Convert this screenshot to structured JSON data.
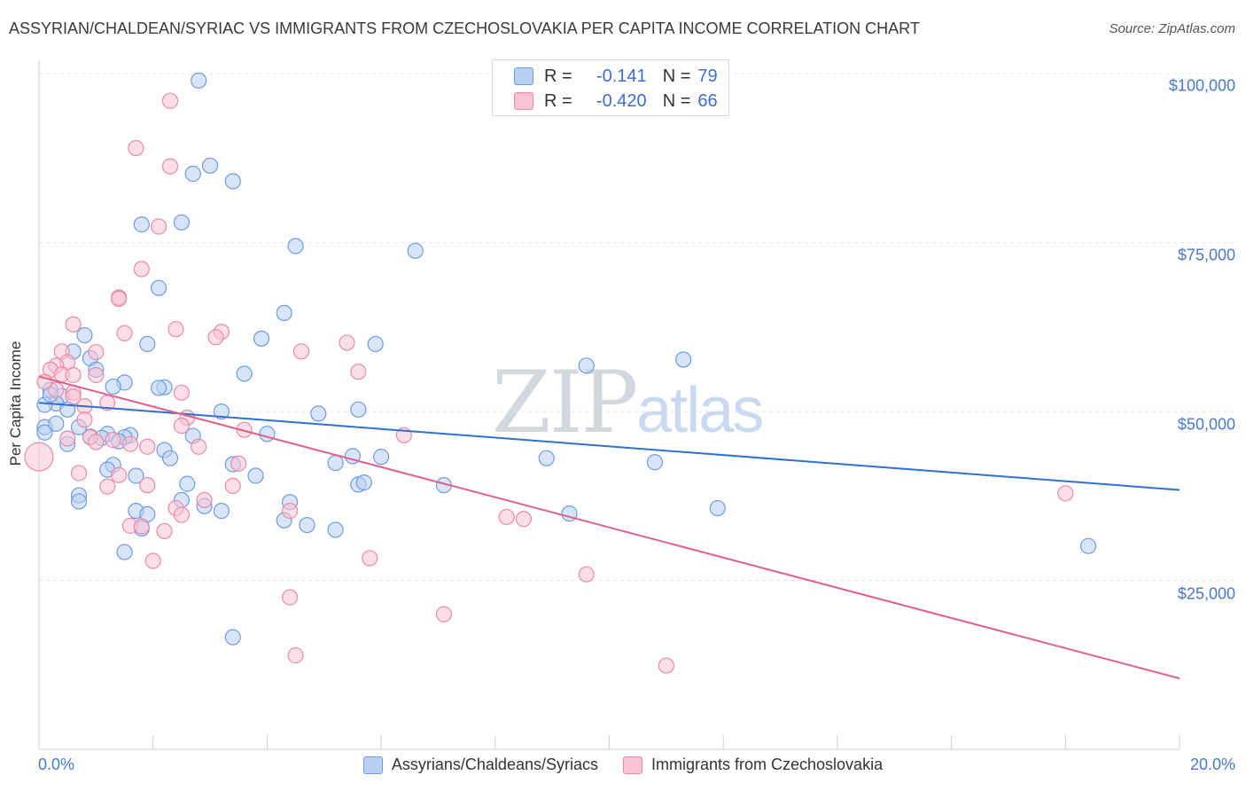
{
  "header": {
    "title": "ASSYRIAN/CHALDEAN/SYRIAC VS IMMIGRANTS FROM CZECHOSLOVAKIA PER CAPITA INCOME CORRELATION CHART",
    "source": "Source: ZipAtlas.com"
  },
  "watermark": {
    "zip": "ZIP",
    "atlas": "atlas"
  },
  "stats": {
    "blue": {
      "r_label": "R =",
      "r_value": "-0.141",
      "n_label": "N =",
      "n_value": "79"
    },
    "pink": {
      "r_label": "R =",
      "r_value": "-0.420",
      "n_label": "N =",
      "n_value": "66"
    }
  },
  "legend": {
    "blue_label": "Assyrians/Chaldeans/Syriacs",
    "pink_label": "Immigrants from Czechoslovakia"
  },
  "colors": {
    "blue_fill": "#b8d0f2",
    "blue_stroke": "#6f9be0",
    "blue_line": "#2f6fd0",
    "pink_fill": "#f9c3d3",
    "pink_stroke": "#e98aa8",
    "pink_line": "#e0608a",
    "grid": "#e2e2e2",
    "tick_text": "#4a78c8"
  },
  "chart_data": {
    "type": "scatter",
    "title": "ASSYRIAN/CHALDEAN/SYRIAC VS IMMIGRANTS FROM CZECHOSLOVAKIA PER CAPITA INCOME CORRELATION CHART",
    "xlabel": "",
    "ylabel": "Per Capita Income",
    "x_unit": "%",
    "xlim": [
      0,
      20
    ],
    "ylim": [
      0,
      102000
    ],
    "x_tick_labels": [
      "0.0%",
      "20.0%"
    ],
    "y_ticks": [
      25000,
      50000,
      75000,
      100000
    ],
    "y_tick_labels": [
      "$25,000",
      "$50,000",
      "$75,000",
      "$100,000"
    ],
    "grid": true,
    "series": [
      {
        "name": "Assyrians/Chaldeans/Syriacs",
        "R": -0.141,
        "N": 79,
        "trend": {
          "x": [
            0,
            20
          ],
          "y": [
            51300,
            38400
          ]
        },
        "points": [
          [
            2.8,
            99000
          ],
          [
            3.0,
            86400
          ],
          [
            2.7,
            85200
          ],
          [
            3.4,
            84100
          ],
          [
            1.8,
            77700
          ],
          [
            2.5,
            78000
          ],
          [
            4.5,
            74500
          ],
          [
            6.6,
            73800
          ],
          [
            2.1,
            68300
          ],
          [
            4.3,
            64600
          ],
          [
            0.8,
            61300
          ],
          [
            3.9,
            60800
          ],
          [
            1.9,
            60000
          ],
          [
            5.9,
            60000
          ],
          [
            0.6,
            58900
          ],
          [
            0.9,
            57900
          ],
          [
            11.3,
            57700
          ],
          [
            9.6,
            56800
          ],
          [
            1.0,
            56200
          ],
          [
            3.6,
            55600
          ],
          [
            1.5,
            54300
          ],
          [
            1.3,
            53700
          ],
          [
            2.2,
            53600
          ],
          [
            2.1,
            53500
          ],
          [
            0.2,
            53200
          ],
          [
            0.4,
            52300
          ],
          [
            0.3,
            51200
          ],
          [
            0.1,
            51000
          ],
          [
            0.5,
            50300
          ],
          [
            3.2,
            50000
          ],
          [
            4.9,
            49700
          ],
          [
            5.6,
            50300
          ],
          [
            0.7,
            47700
          ],
          [
            0.1,
            47700
          ],
          [
            0.1,
            46900
          ],
          [
            1.2,
            46700
          ],
          [
            1.6,
            46500
          ],
          [
            2.7,
            46400
          ],
          [
            4.0,
            46700
          ],
          [
            0.9,
            46300
          ],
          [
            1.1,
            46100
          ],
          [
            1.5,
            46200
          ],
          [
            0.5,
            45200
          ],
          [
            2.2,
            44300
          ],
          [
            2.3,
            43100
          ],
          [
            5.5,
            43400
          ],
          [
            6.0,
            43300
          ],
          [
            8.9,
            43100
          ],
          [
            10.8,
            42500
          ],
          [
            5.2,
            42400
          ],
          [
            3.4,
            42200
          ],
          [
            1.3,
            42100
          ],
          [
            1.2,
            41400
          ],
          [
            3.8,
            40500
          ],
          [
            1.7,
            40500
          ],
          [
            2.6,
            39300
          ],
          [
            5.6,
            39200
          ],
          [
            5.7,
            39500
          ],
          [
            7.1,
            39100
          ],
          [
            0.7,
            37600
          ],
          [
            2.5,
            36900
          ],
          [
            0.7,
            36700
          ],
          [
            4.4,
            36600
          ],
          [
            2.9,
            36000
          ],
          [
            3.2,
            35300
          ],
          [
            1.7,
            35300
          ],
          [
            1.9,
            34800
          ],
          [
            9.3,
            34900
          ],
          [
            11.9,
            35700
          ],
          [
            4.3,
            33900
          ],
          [
            4.7,
            33200
          ],
          [
            5.2,
            32500
          ],
          [
            1.8,
            32700
          ],
          [
            1.5,
            29200
          ],
          [
            18.4,
            30100
          ],
          [
            3.4,
            16600
          ],
          [
            0.2,
            52500
          ],
          [
            0.3,
            48200
          ],
          [
            1.4,
            45600
          ]
        ]
      },
      {
        "name": "Immigrants from Czechoslovakia",
        "R": -0.42,
        "N": 66,
        "trend": {
          "x": [
            0,
            20
          ],
          "y": [
            55200,
            10500
          ]
        },
        "points": [
          [
            2.3,
            96000
          ],
          [
            1.7,
            89000
          ],
          [
            2.3,
            86300
          ],
          [
            2.1,
            77400
          ],
          [
            1.8,
            71100
          ],
          [
            1.4,
            66900
          ],
          [
            1.4,
            66700
          ],
          [
            0.6,
            62900
          ],
          [
            2.4,
            62200
          ],
          [
            3.2,
            61800
          ],
          [
            3.1,
            61000
          ],
          [
            1.5,
            61600
          ],
          [
            5.4,
            60200
          ],
          [
            0.4,
            58900
          ],
          [
            1.0,
            58800
          ],
          [
            4.6,
            58900
          ],
          [
            0.5,
            57300
          ],
          [
            0.3,
            56800
          ],
          [
            0.2,
            56200
          ],
          [
            0.4,
            55500
          ],
          [
            0.6,
            55400
          ],
          [
            5.6,
            55900
          ],
          [
            1.0,
            55400
          ],
          [
            0.3,
            53200
          ],
          [
            0.6,
            52800
          ],
          [
            2.5,
            52800
          ],
          [
            0.6,
            52200
          ],
          [
            1.2,
            51300
          ],
          [
            0.8,
            50800
          ],
          [
            2.6,
            49100
          ],
          [
            0.8,
            48800
          ],
          [
            2.5,
            47900
          ],
          [
            3.6,
            47300
          ],
          [
            6.4,
            46500
          ],
          [
            0.9,
            46200
          ],
          [
            1.3,
            45800
          ],
          [
            1.0,
            45500
          ],
          [
            1.6,
            45200
          ],
          [
            1.9,
            44800
          ],
          [
            2.8,
            44800
          ],
          [
            0.0,
            43300
          ],
          [
            3.5,
            42300
          ],
          [
            0.7,
            40900
          ],
          [
            1.4,
            40600
          ],
          [
            1.9,
            39100
          ],
          [
            3.4,
            39000
          ],
          [
            1.2,
            38900
          ],
          [
            2.9,
            36900
          ],
          [
            2.4,
            35700
          ],
          [
            4.4,
            35300
          ],
          [
            2.5,
            34700
          ],
          [
            8.2,
            34400
          ],
          [
            8.5,
            34100
          ],
          [
            1.6,
            33100
          ],
          [
            1.8,
            33000
          ],
          [
            2.2,
            32300
          ],
          [
            5.8,
            28300
          ],
          [
            2.0,
            27900
          ],
          [
            9.6,
            25900
          ],
          [
            4.4,
            22500
          ],
          [
            7.1,
            20000
          ],
          [
            4.5,
            13900
          ],
          [
            11.0,
            12400
          ],
          [
            18.0,
            37900
          ],
          [
            0.1,
            54400
          ],
          [
            0.5,
            46000
          ]
        ]
      }
    ]
  }
}
